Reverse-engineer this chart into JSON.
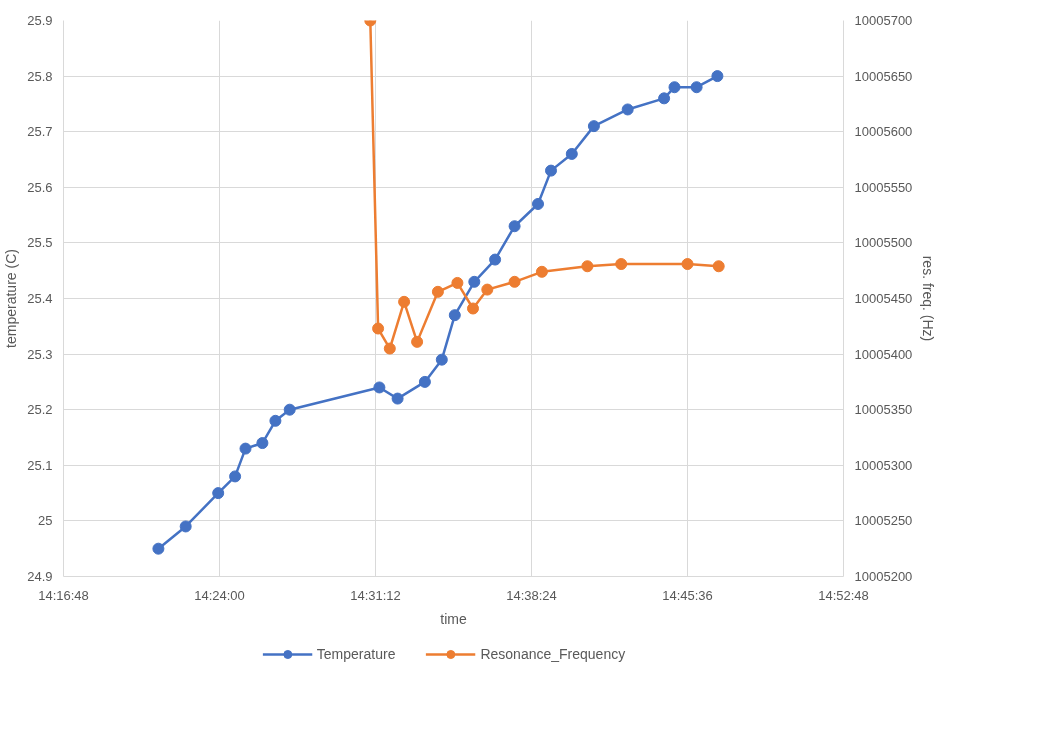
{
  "chart_data": {
    "type": "line",
    "xlabel": "time",
    "ylabel": "temperature (C)",
    "y2label": "res. freq. (Hz)",
    "xlim": [
      14.28,
      14.88
    ],
    "xticks": [
      {
        "value": 14.28,
        "label": "14:16:48"
      },
      {
        "value": 14.4,
        "label": "14:24:00"
      },
      {
        "value": 14.52,
        "label": "14:31:12"
      },
      {
        "value": 14.64,
        "label": "14:38:24"
      },
      {
        "value": 14.76,
        "label": "14:45:36"
      },
      {
        "value": 14.88,
        "label": "14:52:48"
      }
    ],
    "ylim": [
      24.9,
      25.9
    ],
    "yticks": [
      {
        "value": 24.9,
        "label": "24.9"
      },
      {
        "value": 25.0,
        "label": "25"
      },
      {
        "value": 25.1,
        "label": "25.1"
      },
      {
        "value": 25.2,
        "label": "25.2"
      },
      {
        "value": 25.3,
        "label": "25.3"
      },
      {
        "value": 25.4,
        "label": "25.4"
      },
      {
        "value": 25.5,
        "label": "25.5"
      },
      {
        "value": 25.6,
        "label": "25.6"
      },
      {
        "value": 25.7,
        "label": "25.7"
      },
      {
        "value": 25.8,
        "label": "25.8"
      },
      {
        "value": 25.9,
        "label": "25.9"
      }
    ],
    "y2lim": [
      10005200,
      10005700
    ],
    "y2ticks": [
      10005200,
      10005250,
      10005300,
      10005350,
      10005400,
      10005450,
      10005500,
      10005550,
      10005600,
      10005650,
      10005700
    ],
    "grid": true,
    "legend": "bottom",
    "marker": "circle",
    "line_style": "solid",
    "series": [
      {
        "name": "Temperature",
        "color": "#4472c4",
        "x": [
          14.353,
          14.374,
          14.399,
          14.412,
          14.42,
          14.433,
          14.443,
          14.454,
          14.523,
          14.537,
          14.558,
          14.571,
          14.581,
          14.596,
          14.612,
          14.627,
          14.645,
          14.655,
          14.671,
          14.688,
          14.714,
          14.742,
          14.75,
          14.767,
          14.783
        ],
        "values": [
          24.95,
          24.99,
          25.05,
          25.08,
          25.13,
          25.14,
          25.18,
          25.2,
          25.24,
          25.22,
          25.25,
          25.29,
          25.37,
          25.43,
          25.47,
          25.53,
          25.57,
          25.63,
          25.66,
          25.71,
          25.74,
          25.76,
          25.78,
          25.78,
          25.8
        ]
      },
      {
        "name": "Resonance_Frequency",
        "color": "#ed7d31",
        "axis": "y2",
        "x": [
          14.516,
          14.522,
          14.531,
          14.542,
          14.552,
          14.568,
          14.583,
          14.595,
          14.606,
          14.627,
          14.648,
          14.683,
          14.709,
          14.76,
          14.784
        ],
        "values": [
          10005700,
          10005423,
          10005405,
          10005447,
          10005411,
          10005456,
          10005464,
          10005441,
          10005458,
          10005465,
          10005474,
          10005479,
          10005481,
          10005481,
          10005479
        ]
      }
    ]
  }
}
